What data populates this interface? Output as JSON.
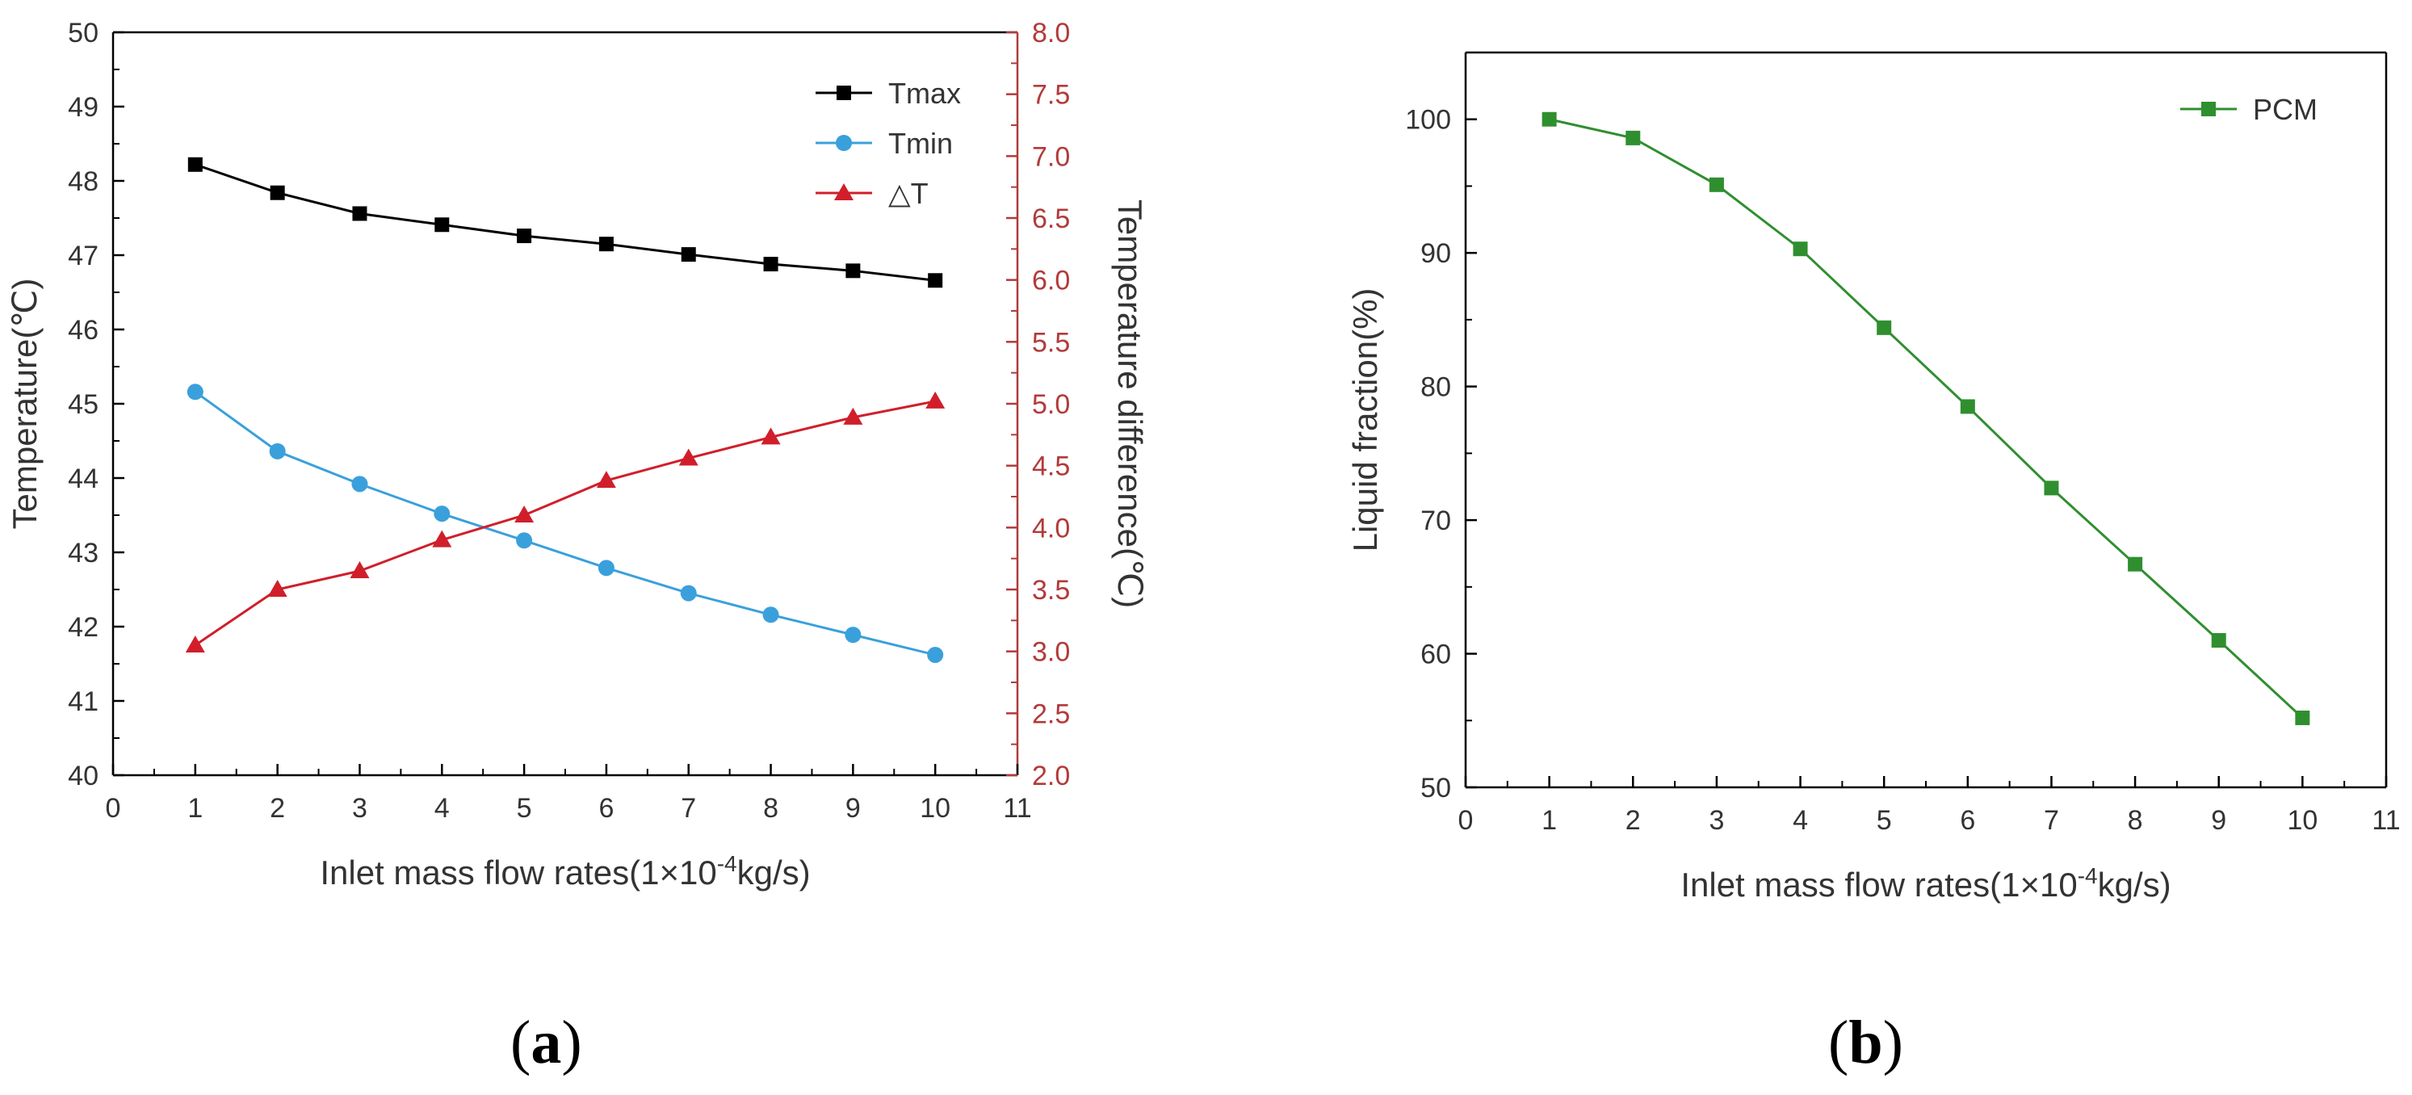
{
  "colors": {
    "tmax": "#000000",
    "tmin": "#3aa0dc",
    "dt": "#d01f2a",
    "pcm": "#2f8f2f",
    "right_axis": "#b33a3a"
  },
  "chart_data": [
    {
      "id": "a",
      "type": "line",
      "panel_label": "a",
      "xlabel_prefix": "Inlet mass flow rates(1×10",
      "xlabel_sup": "-4",
      "xlabel_suffix": "kg/s)",
      "ylabel": "Temperature(℃)",
      "y2label": "Temperature difference(℃)",
      "xlim": [
        0,
        11
      ],
      "ylim": [
        40,
        50
      ],
      "y2lim": [
        2.0,
        8.0
      ],
      "x_ticks": [
        "0",
        "1",
        "2",
        "3",
        "4",
        "5",
        "6",
        "7",
        "8",
        "9",
        "10",
        "11"
      ],
      "y_ticks": [
        "40",
        "41",
        "42",
        "43",
        "44",
        "45",
        "46",
        "47",
        "48",
        "49",
        "50"
      ],
      "y2_ticks": [
        "2.0",
        "2.5",
        "3.0",
        "3.5",
        "4.0",
        "4.5",
        "5.0",
        "5.5",
        "6.0",
        "6.5",
        "7.0",
        "7.5",
        "8.0"
      ],
      "x": [
        1,
        2,
        3,
        4,
        5,
        6,
        7,
        8,
        9,
        10
      ],
      "legend_position": "top-right",
      "series": [
        {
          "name": "Tmax",
          "axis": "left",
          "marker": "square",
          "color_key": "tmax",
          "values": [
            48.22,
            47.84,
            47.56,
            47.41,
            47.26,
            47.15,
            47.01,
            46.88,
            46.79,
            46.66
          ]
        },
        {
          "name": "Tmin",
          "axis": "left",
          "marker": "circle",
          "color_key": "tmin",
          "values": [
            45.16,
            44.36,
            43.92,
            43.52,
            43.16,
            42.79,
            42.45,
            42.16,
            41.89,
            41.62
          ]
        },
        {
          "name": "△T",
          "axis": "right",
          "marker": "triangle",
          "color_key": "dt",
          "values": [
            3.05,
            3.5,
            3.65,
            3.9,
            4.1,
            4.38,
            4.56,
            4.73,
            4.89,
            5.02
          ]
        }
      ]
    },
    {
      "id": "b",
      "type": "line",
      "panel_label": "b",
      "xlabel_prefix": "Inlet mass flow rates(1×10",
      "xlabel_sup": "-4",
      "xlabel_suffix": "kg/s)",
      "ylabel": "Liquid fraction(%)",
      "xlim": [
        0,
        11
      ],
      "ylim": [
        50,
        105
      ],
      "x_ticks": [
        "0",
        "1",
        "2",
        "3",
        "4",
        "5",
        "6",
        "7",
        "8",
        "9",
        "10",
        "11"
      ],
      "y_ticks": [
        "50",
        "60",
        "70",
        "80",
        "90",
        "100"
      ],
      "x": [
        1,
        2,
        3,
        4,
        5,
        6,
        7,
        8,
        9,
        10
      ],
      "legend_position": "top-right",
      "series": [
        {
          "name": "PCM",
          "axis": "left",
          "marker": "square",
          "color_key": "pcm",
          "values": [
            100.0,
            98.6,
            95.1,
            90.3,
            84.4,
            78.5,
            72.4,
            66.7,
            61.0,
            55.2
          ]
        }
      ]
    }
  ]
}
